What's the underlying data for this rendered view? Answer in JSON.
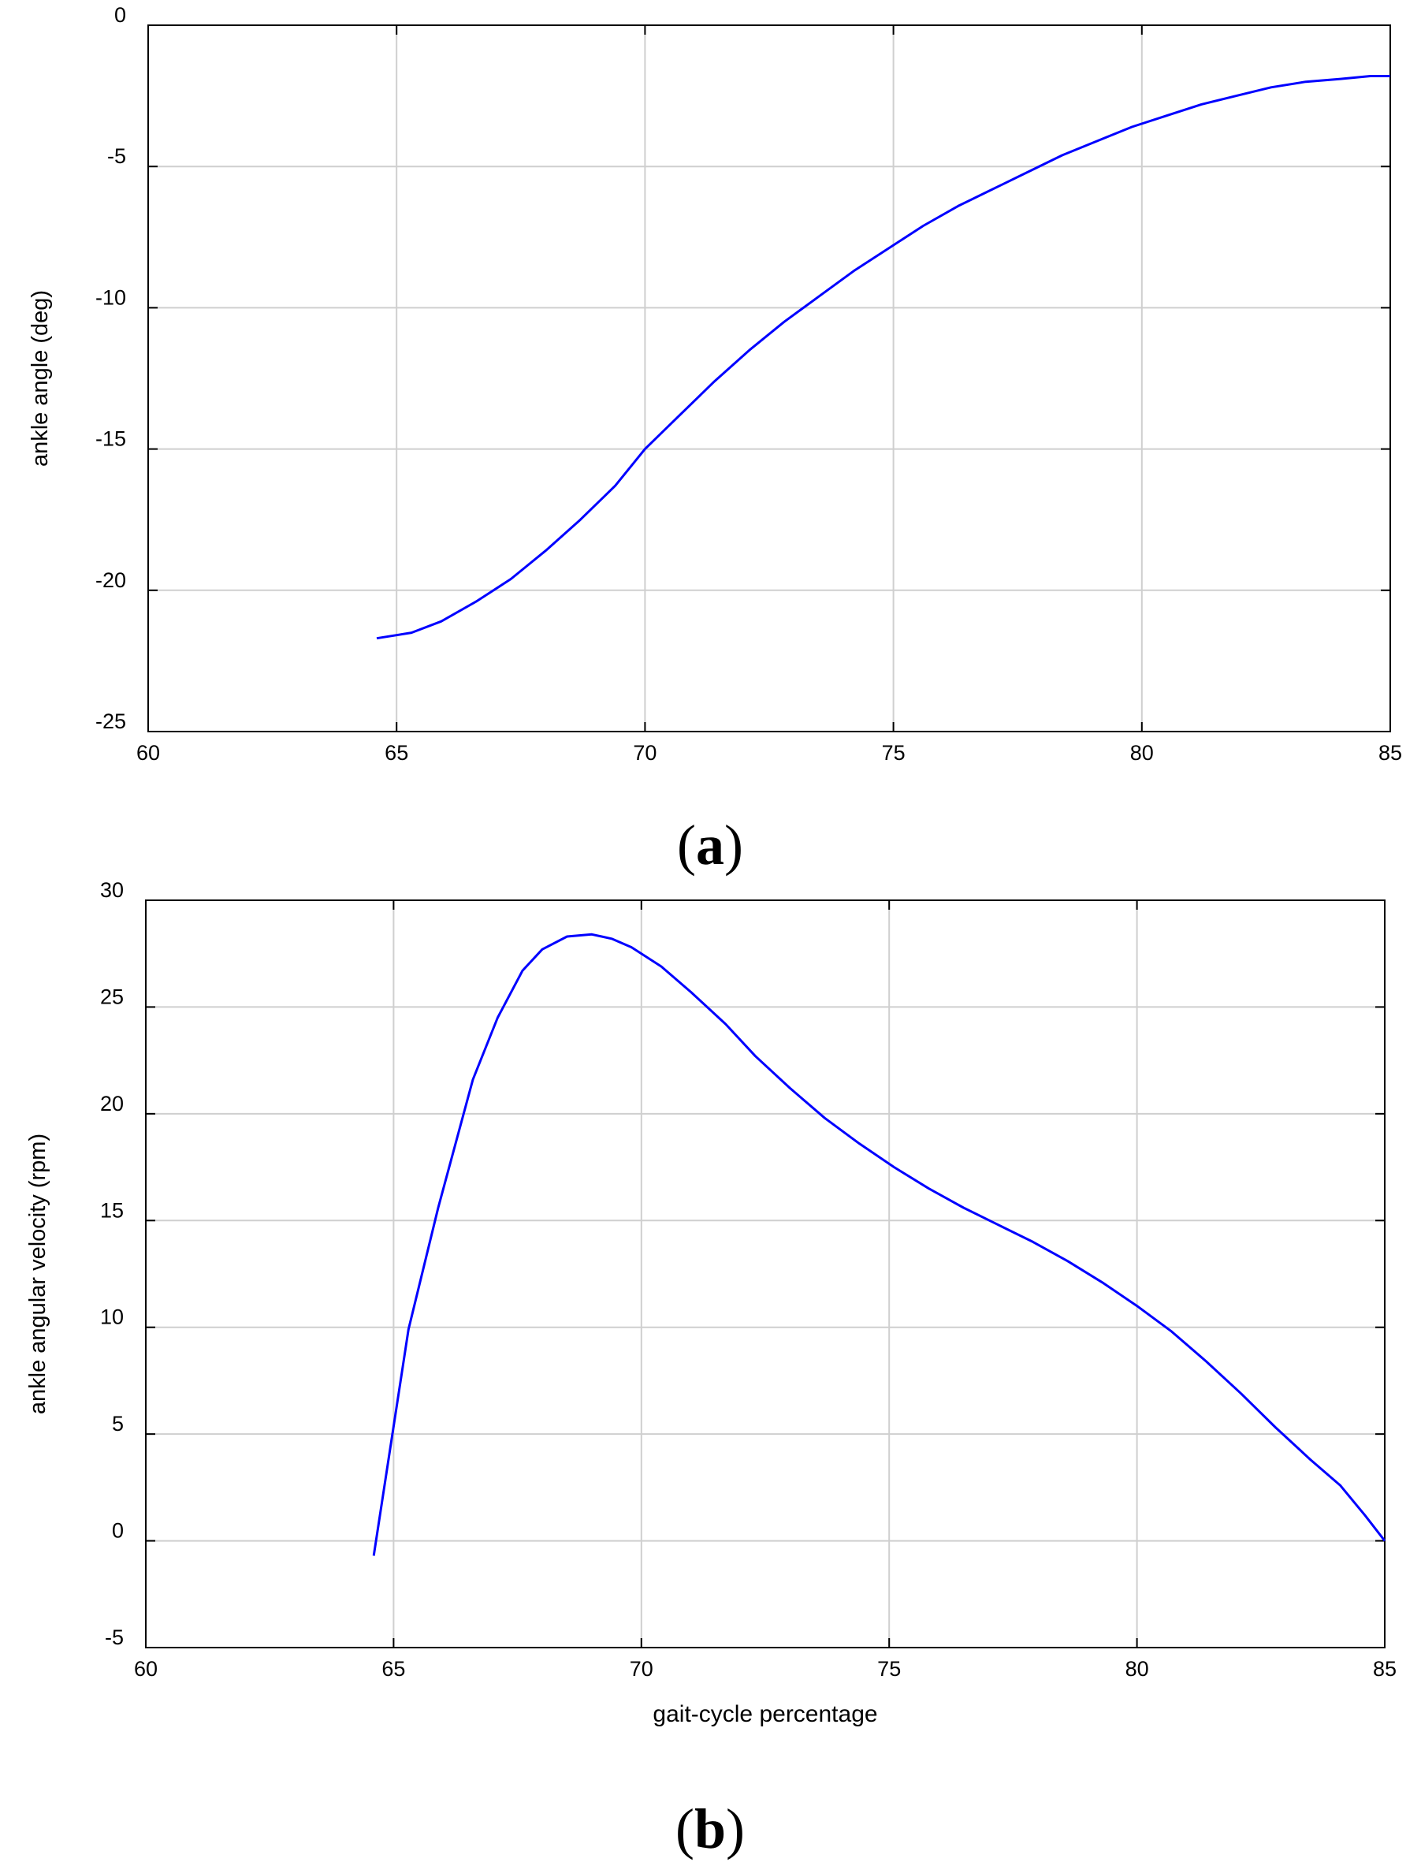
{
  "chart_data": [
    {
      "type": "line",
      "panel_label": "a",
      "title": "",
      "xlabel": "",
      "ylabel": "ankle angle (deg)",
      "xlim": [
        60,
        85
      ],
      "ylim": [
        -25,
        0
      ],
      "xticks": [
        60,
        65,
        70,
        75,
        80,
        85
      ],
      "yticks": [
        0,
        -5,
        -10,
        -15,
        -20,
        -25
      ],
      "grid": true,
      "line_color": "#0000ff",
      "series": [
        {
          "x": [
            64.6,
            65.3,
            65.9,
            66.6,
            67.3,
            68.0,
            68.7,
            69.4,
            70.0,
            70.7,
            71.4,
            72.1,
            72.8,
            73.5,
            74.2,
            74.9,
            75.6,
            76.3,
            77.0,
            77.7,
            78.4,
            79.1,
            79.8,
            80.5,
            81.2,
            81.9,
            82.6,
            83.3,
            84.0,
            84.6,
            85.0
          ],
          "y": [
            -21.7,
            -21.5,
            -21.1,
            -20.4,
            -19.6,
            -18.6,
            -17.5,
            -16.3,
            -15.0,
            -13.8,
            -12.6,
            -11.5,
            -10.5,
            -9.6,
            -8.7,
            -7.9,
            -7.1,
            -6.4,
            -5.8,
            -5.2,
            -4.6,
            -4.1,
            -3.6,
            -3.2,
            -2.8,
            -2.5,
            -2.2,
            -2.0,
            -1.9,
            -1.8,
            -1.8
          ]
        }
      ]
    },
    {
      "type": "line",
      "panel_label": "b",
      "title": "",
      "xlabel": "gait-cycle percentage",
      "ylabel": "ankle angular velocity (rpm)",
      "xlim": [
        60,
        85
      ],
      "ylim": [
        -5,
        30
      ],
      "xticks": [
        60,
        65,
        70,
        75,
        80,
        85
      ],
      "yticks": [
        30,
        25,
        20,
        15,
        10,
        5,
        0,
        -5
      ],
      "grid": true,
      "line_color": "#0000ff",
      "series": [
        {
          "x": [
            64.6,
            65.3,
            65.9,
            66.6,
            67.1,
            67.6,
            68.0,
            68.5,
            69.0,
            69.4,
            69.8,
            70.4,
            71.0,
            71.7,
            72.3,
            73.0,
            73.7,
            74.4,
            75.1,
            75.8,
            76.5,
            77.2,
            77.9,
            78.6,
            79.3,
            80.0,
            80.7,
            81.4,
            82.1,
            82.8,
            83.5,
            84.1,
            84.6,
            85.0
          ],
          "y": [
            -0.7,
            9.9,
            15.6,
            21.6,
            24.5,
            26.7,
            27.7,
            28.3,
            28.4,
            28.2,
            27.8,
            26.9,
            25.7,
            24.2,
            22.7,
            21.2,
            19.8,
            18.6,
            17.5,
            16.5,
            15.6,
            14.8,
            14.0,
            13.1,
            12.1,
            11.0,
            9.8,
            8.4,
            6.9,
            5.3,
            3.8,
            2.6,
            1.2,
            0.0
          ]
        }
      ]
    }
  ]
}
